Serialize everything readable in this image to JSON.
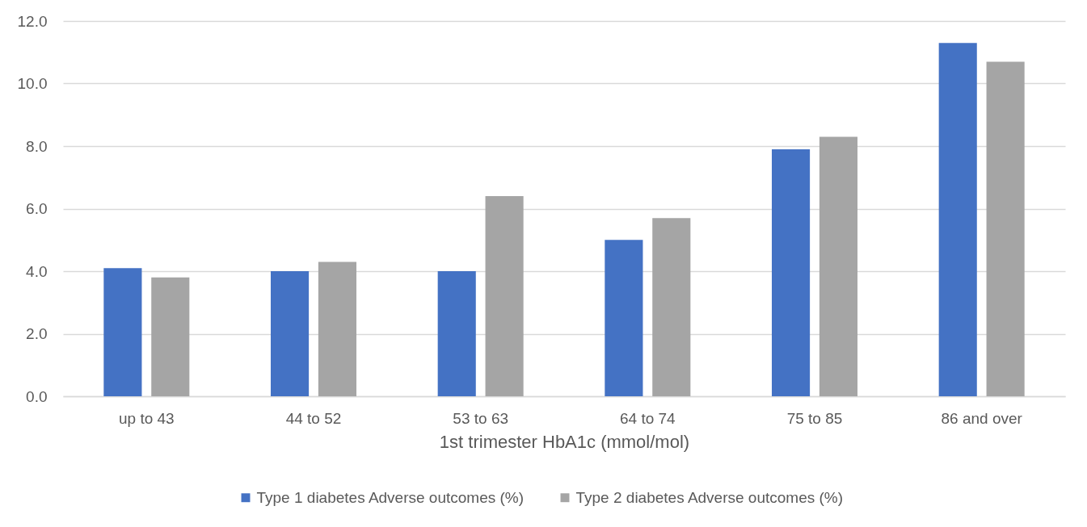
{
  "chart_data": {
    "type": "bar",
    "xlabel": "1st trimester HbA1c (mmol/mol)",
    "categories": [
      "up to 43",
      "44 to 52",
      "53 to 63",
      "64 to 74",
      "75 to 85",
      "86 and over"
    ],
    "series": [
      {
        "name": "Type 1 diabetes Adverse outcomes (%)",
        "color": "#4472c4",
        "values": [
          4.1,
          4.0,
          4.0,
          5.0,
          7.9,
          11.3
        ]
      },
      {
        "name": "Type 2 diabetes Adverse outcomes (%)",
        "color": "#a5a5a5",
        "values": [
          3.8,
          4.3,
          6.4,
          5.7,
          8.3,
          10.7
        ]
      }
    ],
    "ylim": [
      0,
      12
    ],
    "yticks": [
      {
        "value": 0,
        "label": "0.0"
      },
      {
        "value": 2,
        "label": "2.0"
      },
      {
        "value": 4,
        "label": "4.0"
      },
      {
        "value": 6,
        "label": "6.0"
      },
      {
        "value": 8,
        "label": "8.0"
      },
      {
        "value": 10,
        "label": "10.0"
      },
      {
        "value": 12,
        "label": "12.0"
      }
    ],
    "grid": "y",
    "legend": "bottom"
  }
}
